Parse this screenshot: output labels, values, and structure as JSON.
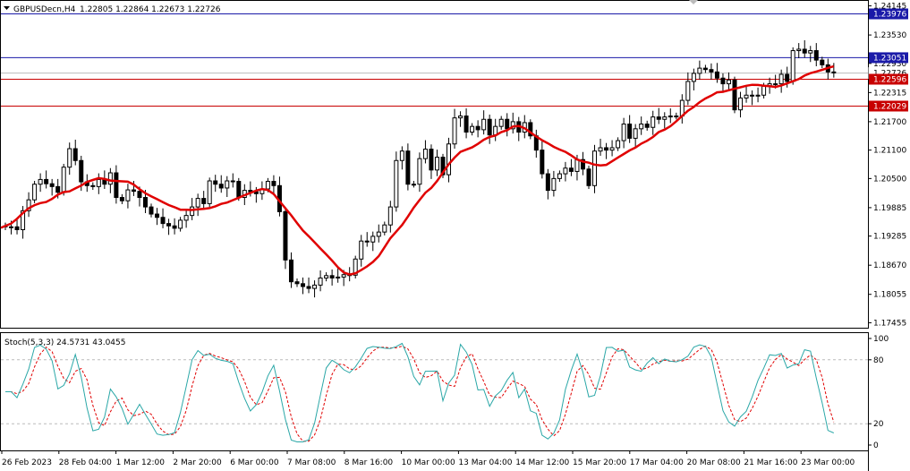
{
  "header": {
    "symbol": "GBPUSDecn,H4",
    "ohlc": "1.22805 1.22864 1.22673 1.22726"
  },
  "stoch_header": "Stoch(5,3,3) 24.5731 43.0455",
  "colors": {
    "bull_body": "#ffffff",
    "bear_body": "#000000",
    "ma": "#e00000",
    "blue_line": "#1a1aa8",
    "red_line": "#c80000",
    "stoch_main": "#2aa7a7",
    "stoch_signal": "#e00000",
    "level_line": "#bbbbbb"
  },
  "price_axis": {
    "labels": [
      "1.24145",
      "1.23530",
      "1.22930",
      "1.22315",
      "1.21700",
      "1.21100",
      "1.20500",
      "1.19885",
      "1.19285",
      "1.18670",
      "1.18055",
      "1.17455"
    ]
  },
  "price_tags": [
    {
      "value": 1.23976,
      "label": "1.23976",
      "type": "blue"
    },
    {
      "value": 1.23051,
      "label": "1.23051",
      "type": "blue"
    },
    {
      "value": 1.22726,
      "label": "1.22726",
      "type": "current"
    },
    {
      "value": 1.22596,
      "label": "1.22596",
      "type": "red"
    },
    {
      "value": 1.22029,
      "label": "1.22029",
      "type": "red"
    }
  ],
  "stoch_axis": {
    "labels": [
      "100",
      "80",
      "20",
      "0"
    ],
    "levels": [
      80,
      20
    ]
  },
  "time_axis": {
    "labels": [
      "26 Feb 2023",
      "28 Feb 04:00",
      "1 Mar 12:00",
      "2 Mar 20:00",
      "6 Mar 00:00",
      "7 Mar 08:00",
      "8 Mar 16:00",
      "10 Mar 00:00",
      "13 Mar 04:00",
      "14 Mar 12:00",
      "15 Mar 20:00",
      "17 Mar 04:00",
      "20 Mar 08:00",
      "21 Mar 16:00",
      "23 Mar 00:00"
    ]
  },
  "chart_data": {
    "type": "candlestick",
    "ylim": [
      1.1735,
      1.2425
    ],
    "closes": [
      1.1948,
      1.1948,
      1.1942,
      1.1982,
      1.2005,
      1.2038,
      1.2048,
      1.2039,
      1.2033,
      1.2021,
      1.2074,
      1.2113,
      1.2088,
      1.2043,
      1.2035,
      1.2033,
      1.2048,
      1.2038,
      1.2062,
      1.201,
      1.2003,
      1.2026,
      1.2023,
      1.201,
      1.199,
      1.1975,
      1.1968,
      1.1955,
      1.195,
      1.1945,
      1.1962,
      1.1972,
      1.199,
      1.2008,
      1.1997,
      1.2045,
      1.2038,
      1.203,
      1.2045,
      1.2044,
      1.201,
      1.2025,
      1.2022,
      1.2018,
      1.2028,
      1.2044,
      1.2035,
      1.198,
      1.1878,
      1.1832,
      1.1828,
      1.1822,
      1.1818,
      1.1825,
      1.184,
      1.1845,
      1.184,
      1.1842,
      1.1847,
      1.1846,
      1.188,
      1.1918,
      1.1916,
      1.1928,
      1.1937,
      1.1952,
      1.199,
      1.2088,
      1.2108,
      1.2038,
      1.2038,
      1.2092,
      1.2112,
      1.2068,
      1.2095,
      1.2058,
      1.2123,
      1.2178,
      1.2182,
      1.2148,
      1.216,
      1.2153,
      1.2175,
      1.2142,
      1.216,
      1.2175,
      1.2155,
      1.217,
      1.2148,
      1.2168,
      1.214,
      1.211,
      1.206,
      1.2025,
      1.205,
      1.206,
      1.2072,
      1.2065,
      1.209,
      1.207,
      1.2035,
      1.2108,
      1.2115,
      1.211,
      1.2115,
      1.213,
      1.2165,
      1.2135,
      1.2155,
      1.2165,
      1.2158,
      1.218,
      1.2175,
      1.218,
      1.2182,
      1.2182,
      1.2215,
      1.2255,
      1.2272,
      1.2283,
      1.228,
      1.2275,
      1.2262,
      1.225,
      1.2258,
      1.2195,
      1.222,
      1.2226,
      1.2224,
      1.2226,
      1.2245,
      1.225,
      1.225,
      1.227,
      1.2255,
      1.232,
      1.2323,
      1.2315,
      1.232,
      1.23,
      1.229,
      1.2275,
      1.2273
    ]
  }
}
